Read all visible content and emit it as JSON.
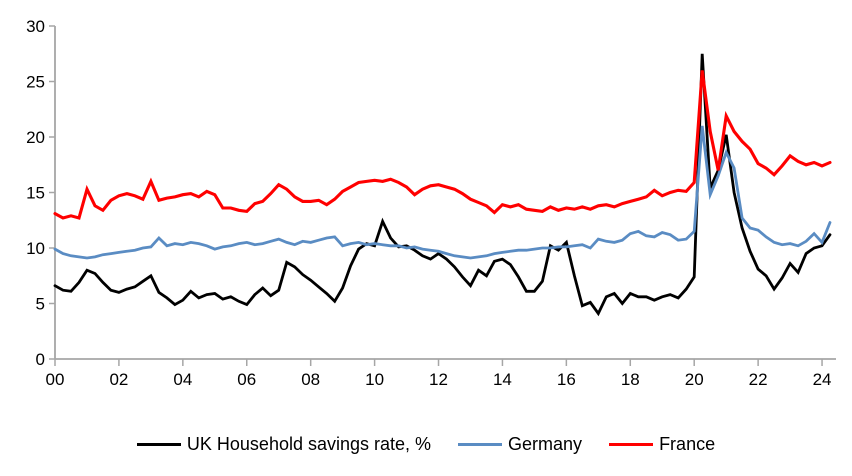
{
  "chart_data": {
    "type": "line",
    "title": "",
    "xlabel": "",
    "ylabel": "",
    "grid": false,
    "legend_position": "bottom",
    "ylim": [
      0,
      30
    ],
    "xlim": [
      2000,
      2024.6
    ],
    "x_start_year": 2000,
    "x_interval_years": 0.25,
    "axis_color": "#a6a6a6",
    "y_ticks": [
      0,
      5,
      10,
      15,
      20,
      25,
      30
    ],
    "x_ticks": [
      {
        "label": "00",
        "year": 2000
      },
      {
        "label": "02",
        "year": 2002
      },
      {
        "label": "04",
        "year": 2004
      },
      {
        "label": "06",
        "year": 2006
      },
      {
        "label": "08",
        "year": 2008
      },
      {
        "label": "10",
        "year": 2010
      },
      {
        "label": "12",
        "year": 2012
      },
      {
        "label": "14",
        "year": 2014
      },
      {
        "label": "16",
        "year": 2016
      },
      {
        "label": "18",
        "year": 2018
      },
      {
        "label": "20",
        "year": 2020
      },
      {
        "label": "22",
        "year": 2022
      },
      {
        "label": "24",
        "year": 2024
      }
    ],
    "series": [
      {
        "key": "uk",
        "name": "UK Household savings rate, %",
        "color": "#000000",
        "line_width": 2.8,
        "values": [
          6.6,
          6.2,
          6.1,
          6.9,
          8.0,
          7.7,
          6.9,
          6.2,
          6.0,
          6.3,
          6.5,
          7.0,
          7.5,
          6.0,
          5.5,
          4.9,
          5.3,
          6.1,
          5.5,
          5.8,
          5.9,
          5.4,
          5.6,
          5.2,
          4.9,
          5.8,
          6.4,
          5.7,
          6.2,
          8.7,
          8.3,
          7.6,
          7.1,
          6.5,
          5.9,
          5.2,
          6.4,
          8.4,
          9.9,
          10.4,
          10.2,
          12.4,
          10.9,
          10.1,
          10.2,
          9.8,
          9.3,
          9.0,
          9.5,
          9.0,
          8.3,
          7.4,
          6.6,
          8.0,
          7.5,
          8.8,
          9.0,
          8.5,
          7.4,
          6.1,
          6.1,
          7.0,
          10.2,
          9.8,
          10.5,
          7.5,
          4.8,
          5.1,
          4.1,
          5.6,
          5.9,
          5.0,
          5.9,
          5.6,
          5.6,
          5.3,
          5.6,
          5.8,
          5.5,
          6.3,
          7.4,
          27.5,
          15.4,
          17.0,
          20.2,
          15.0,
          11.8,
          9.7,
          8.1,
          7.5,
          6.3,
          7.3,
          8.6,
          7.8,
          9.5,
          10.0,
          10.2,
          11.2
        ]
      },
      {
        "key": "germany",
        "name": "Germany",
        "color": "#5a8cc3",
        "line_width": 2.8,
        "values": [
          9.9,
          9.5,
          9.3,
          9.2,
          9.1,
          9.2,
          9.4,
          9.5,
          9.6,
          9.7,
          9.8,
          10.0,
          10.1,
          10.9,
          10.2,
          10.4,
          10.3,
          10.5,
          10.4,
          10.2,
          9.9,
          10.1,
          10.2,
          10.4,
          10.5,
          10.3,
          10.4,
          10.6,
          10.8,
          10.5,
          10.3,
          10.6,
          10.5,
          10.7,
          10.9,
          11.0,
          10.2,
          10.4,
          10.5,
          10.3,
          10.4,
          10.3,
          10.2,
          10.2,
          10.0,
          10.1,
          9.9,
          9.8,
          9.7,
          9.5,
          9.3,
          9.2,
          9.1,
          9.2,
          9.3,
          9.5,
          9.6,
          9.7,
          9.8,
          9.8,
          9.9,
          10.0,
          10.0,
          10.1,
          10.1,
          10.2,
          10.3,
          10.0,
          10.8,
          10.6,
          10.5,
          10.7,
          11.3,
          11.5,
          11.1,
          11.0,
          11.4,
          11.2,
          10.7,
          10.8,
          11.5,
          21.0,
          14.8,
          16.5,
          18.6,
          17.2,
          12.7,
          11.8,
          11.6,
          11.0,
          10.5,
          10.3,
          10.4,
          10.2,
          10.6,
          11.3,
          10.5,
          12.3
        ]
      },
      {
        "key": "france",
        "name": "France",
        "color": "#ff0000",
        "line_width": 3.1,
        "values": [
          13.1,
          12.7,
          12.9,
          12.7,
          15.3,
          13.8,
          13.4,
          14.3,
          14.7,
          14.9,
          14.7,
          14.4,
          16.0,
          14.3,
          14.5,
          14.6,
          14.8,
          14.9,
          14.6,
          15.1,
          14.8,
          13.6,
          13.6,
          13.4,
          13.3,
          14.0,
          14.2,
          14.9,
          15.7,
          15.3,
          14.6,
          14.2,
          14.2,
          14.3,
          13.9,
          14.4,
          15.1,
          15.5,
          15.9,
          16.0,
          16.1,
          16.0,
          16.2,
          15.9,
          15.5,
          14.8,
          15.3,
          15.6,
          15.7,
          15.5,
          15.3,
          14.9,
          14.4,
          14.1,
          13.8,
          13.2,
          13.9,
          13.7,
          13.9,
          13.5,
          13.4,
          13.3,
          13.7,
          13.4,
          13.6,
          13.5,
          13.7,
          13.5,
          13.8,
          13.9,
          13.7,
          14.0,
          14.2,
          14.4,
          14.6,
          15.2,
          14.7,
          15.0,
          15.2,
          15.1,
          15.9,
          26.0,
          20.5,
          17.0,
          21.9,
          20.5,
          19.6,
          18.9,
          17.6,
          17.2,
          16.6,
          17.4,
          18.3,
          17.8,
          17.5,
          17.7,
          17.4,
          17.7
        ]
      }
    ]
  }
}
